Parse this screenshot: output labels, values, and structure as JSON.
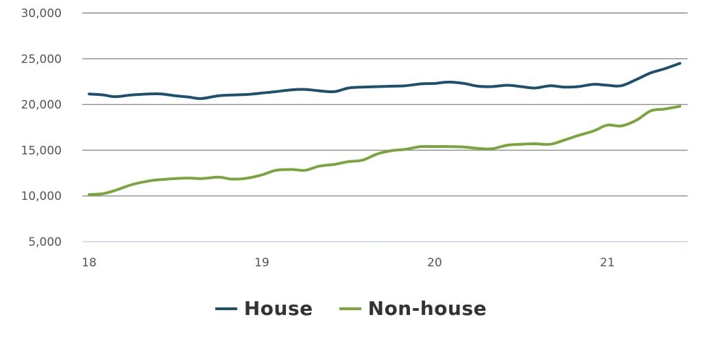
{
  "chart_data": {
    "type": "line",
    "title": "",
    "xlabel": "",
    "ylabel": "",
    "x_tick_labels": [
      "18",
      "19",
      "20",
      "21"
    ],
    "x_tick_positions": [
      18,
      19,
      20,
      21
    ],
    "xlim": [
      18,
      21.45
    ],
    "y_tick_labels": [
      "5,000",
      "10,000",
      "15,000",
      "20,000",
      "25,000",
      "30,000"
    ],
    "y_tick_values": [
      5000,
      10000,
      15000,
      20000,
      25000,
      30000
    ],
    "ylim": [
      5000,
      30000
    ],
    "grid": "horizontal",
    "legend_position": "bottom",
    "series": [
      {
        "name": "House",
        "color": "#1d4f6e",
        "x": [
          18.0,
          18.08,
          18.15,
          18.25,
          18.35,
          18.42,
          18.5,
          18.58,
          18.65,
          18.75,
          18.85,
          18.92,
          19.0,
          19.08,
          19.17,
          19.25,
          19.33,
          19.42,
          19.5,
          19.58,
          19.67,
          19.75,
          19.83,
          19.92,
          20.0,
          20.08,
          20.17,
          20.25,
          20.33,
          20.42,
          20.5,
          20.58,
          20.67,
          20.75,
          20.83,
          20.92,
          21.0,
          21.08,
          21.17,
          21.25,
          21.33,
          21.42
        ],
        "y": [
          21150,
          21050,
          20850,
          21050,
          21150,
          21150,
          20950,
          20800,
          20650,
          20950,
          21050,
          21100,
          21250,
          21400,
          21600,
          21650,
          21500,
          21400,
          21800,
          21900,
          21950,
          22000,
          22050,
          22250,
          22300,
          22450,
          22300,
          22000,
          21950,
          22100,
          21950,
          21800,
          22050,
          21900,
          21950,
          22200,
          22100,
          22050,
          22750,
          23450,
          23900,
          24500
        ]
      },
      {
        "name": "Non-house",
        "color": "#7aa53c",
        "x": [
          18.0,
          18.08,
          18.15,
          18.25,
          18.35,
          18.42,
          18.5,
          18.58,
          18.65,
          18.75,
          18.82,
          18.9,
          19.0,
          19.08,
          19.17,
          19.25,
          19.33,
          19.42,
          19.5,
          19.58,
          19.67,
          19.75,
          19.83,
          19.92,
          20.0,
          20.08,
          20.17,
          20.25,
          20.33,
          20.42,
          20.5,
          20.58,
          20.67,
          20.75,
          20.83,
          20.92,
          21.0,
          21.08,
          21.17,
          21.25,
          21.33,
          21.42
        ],
        "y": [
          10150,
          10250,
          10600,
          11250,
          11650,
          11800,
          11900,
          11950,
          11900,
          12050,
          11850,
          11900,
          12300,
          12800,
          12900,
          12800,
          13250,
          13450,
          13750,
          13900,
          14600,
          14950,
          15100,
          15400,
          15400,
          15400,
          15350,
          15200,
          15150,
          15550,
          15650,
          15700,
          15650,
          16100,
          16600,
          17100,
          17750,
          17650,
          18300,
          19300,
          19500,
          19800
        ]
      }
    ]
  }
}
